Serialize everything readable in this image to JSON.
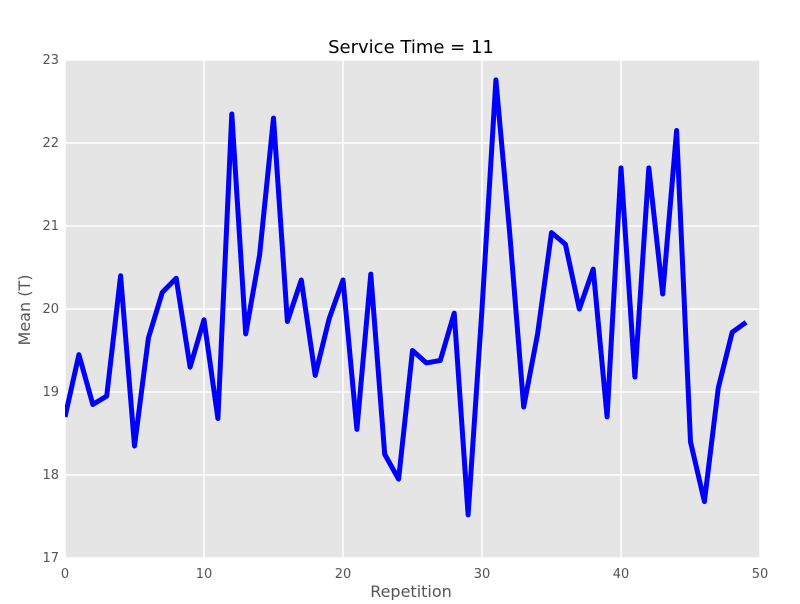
{
  "chart_data": {
    "type": "line",
    "title": "Service Time = 11",
    "xlabel": "Repetition",
    "ylabel": "Mean (T)",
    "xlim": [
      0,
      50
    ],
    "ylim": [
      17,
      23
    ],
    "x_ticks": [
      0,
      10,
      20,
      30,
      40,
      50
    ],
    "y_ticks": [
      17,
      18,
      19,
      20,
      21,
      22,
      23
    ],
    "grid": true,
    "background_color": "#e5e5e5",
    "grid_color": "#ffffff",
    "series": [
      {
        "color": "#0000ff",
        "x": [
          0,
          1,
          2,
          3,
          4,
          5,
          6,
          7,
          8,
          9,
          10,
          11,
          12,
          13,
          14,
          15,
          16,
          17,
          18,
          19,
          20,
          21,
          22,
          23,
          24,
          25,
          26,
          27,
          28,
          29,
          30,
          31,
          32,
          33,
          34,
          35,
          36,
          37,
          38,
          39,
          40,
          41,
          42,
          43,
          44,
          45,
          46,
          47,
          48,
          49
        ],
        "values": [
          18.7,
          19.45,
          18.85,
          18.95,
          20.4,
          18.35,
          19.65,
          20.2,
          20.37,
          19.3,
          19.87,
          18.68,
          22.35,
          19.7,
          20.65,
          22.3,
          19.85,
          20.35,
          19.2,
          19.88,
          20.35,
          18.55,
          20.42,
          18.25,
          17.95,
          19.5,
          19.35,
          19.38,
          19.95,
          17.52,
          20.0,
          22.76,
          20.9,
          18.82,
          19.7,
          20.92,
          20.78,
          20.0,
          20.48,
          18.7,
          21.7,
          19.18,
          21.7,
          20.18,
          22.15,
          18.4,
          17.68,
          19.05,
          19.72,
          19.84
        ]
      }
    ]
  }
}
